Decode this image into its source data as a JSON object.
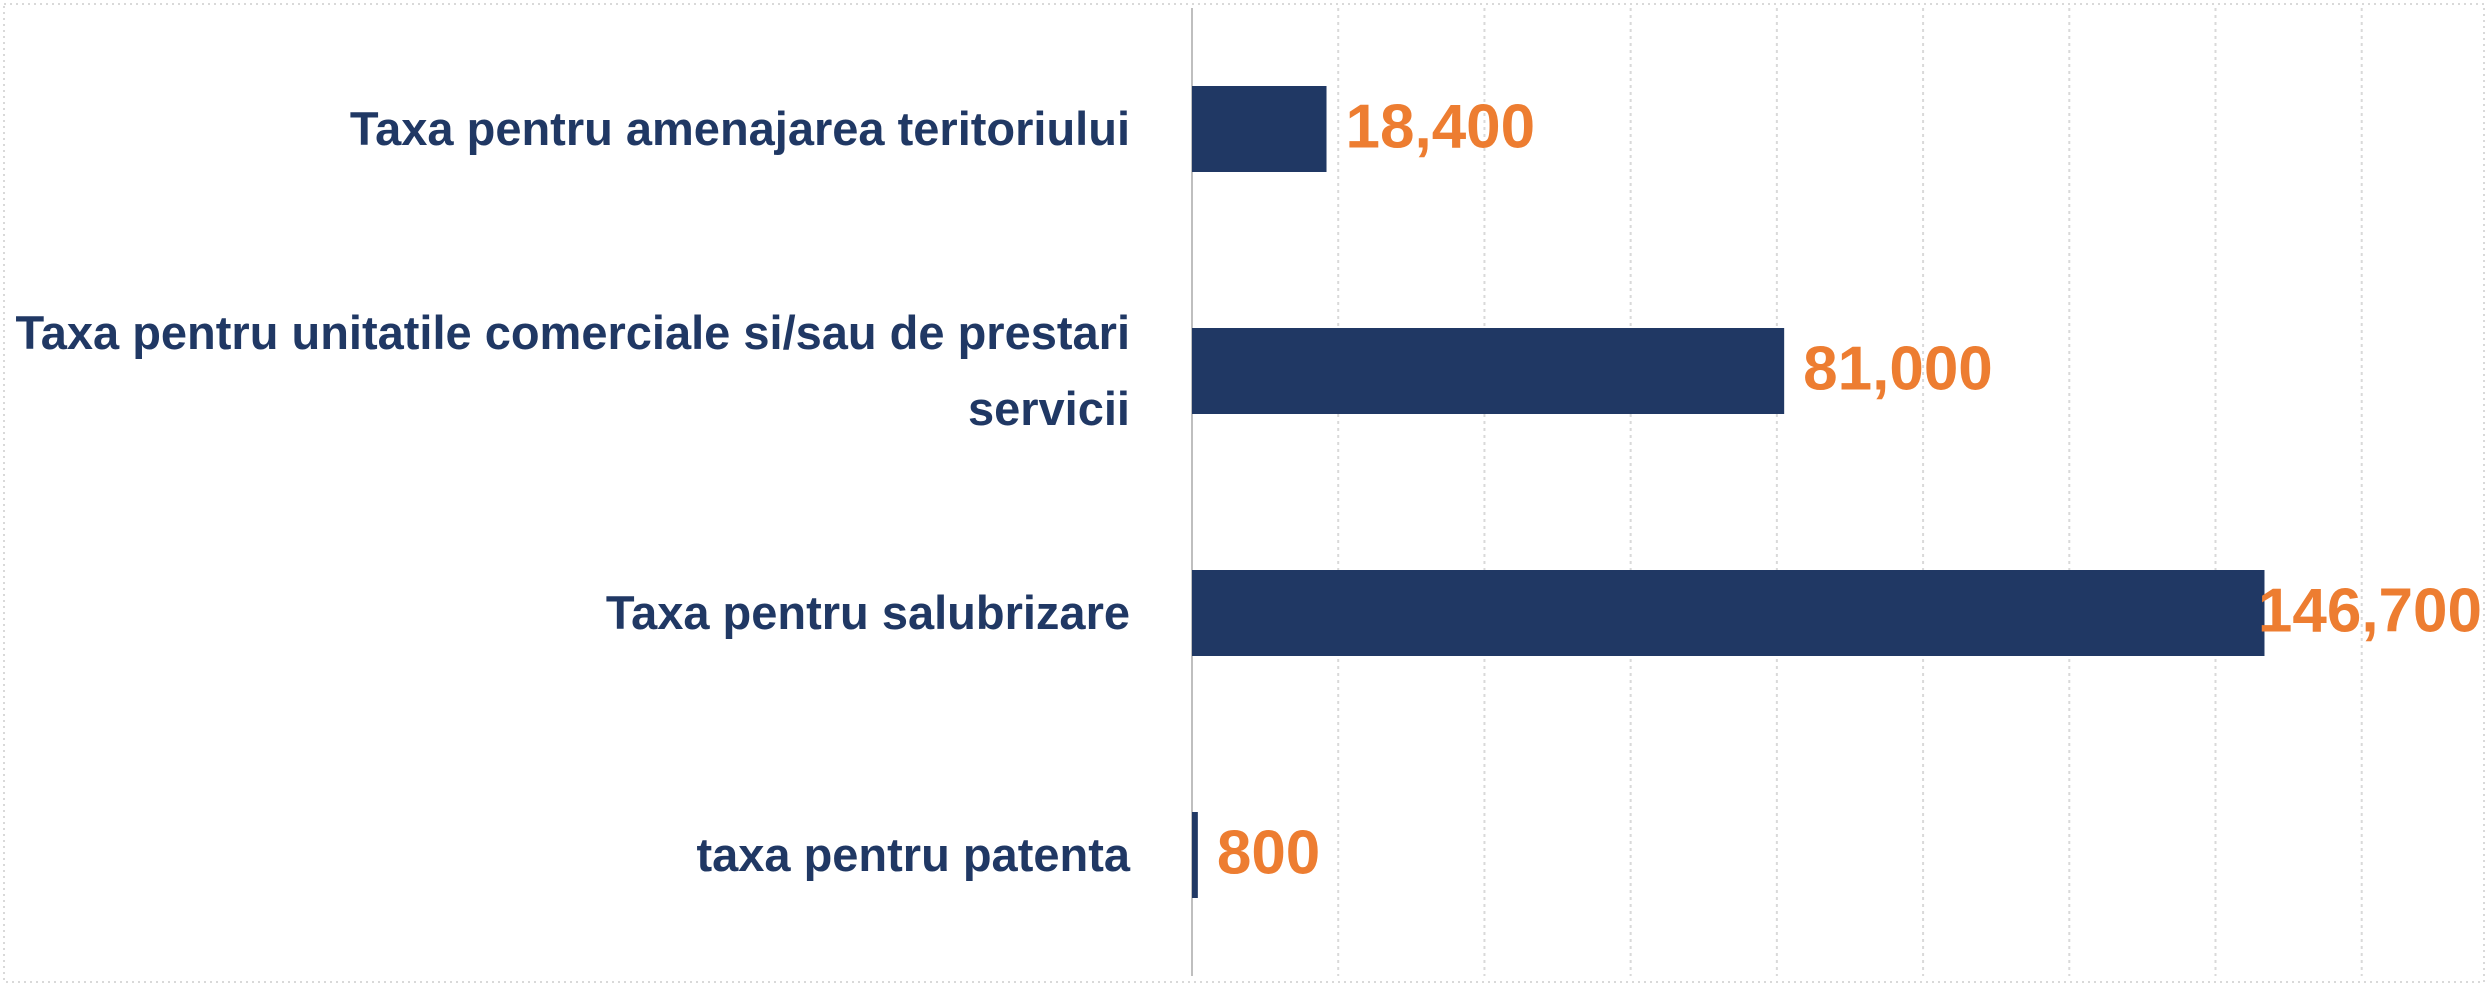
{
  "chart_data": {
    "type": "barh",
    "categories": [
      "Taxa pentru amenajarea teritoriului",
      "Taxa pentru unitatile comerciale si/sau de prestari servicii",
      "Taxa pentru salubrizare",
      "taxa pentru patenta"
    ],
    "values": [
      18400,
      81000,
      146700,
      800
    ],
    "value_labels": [
      "18,400",
      "81,000",
      "146,700",
      "800"
    ],
    "color": "#203864",
    "label_color": "#ED7D31",
    "xlim": [
      0,
      177000
    ],
    "xticks": [
      0,
      20000,
      40000,
      60000,
      80000,
      100000,
      120000,
      140000,
      160000
    ],
    "grid": true
  }
}
